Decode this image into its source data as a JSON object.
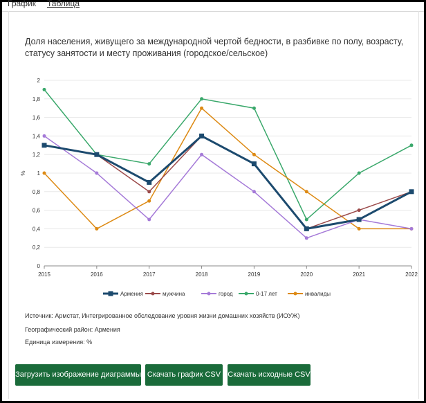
{
  "tabs": {
    "chart": "График",
    "table": "Таблица"
  },
  "title": "Доля населения, живущего за международной чертой бедности, в разбивке по полу, возрасту, статусу занятости и месту проживания (городское/сельское)",
  "chart_data": {
    "type": "line",
    "title": "Доля населения, живущего за международной чертой бедности, в разбивке по полу, возрасту, статусу занятости и месту проживания (городское/сельское)",
    "ylabel": "%",
    "xlabel": "",
    "x": [
      "2015",
      "2016",
      "2017",
      "2018",
      "2019",
      "2020",
      "2021",
      "2022"
    ],
    "ylim": [
      0,
      2
    ],
    "yticks": [
      "0",
      "0,2",
      "0,4",
      "0,6",
      "0,8",
      "1",
      "1,2",
      "1,4",
      "1,6",
      "1,8",
      "2"
    ],
    "grid": true,
    "legend_position": "bottom",
    "series": [
      {
        "name": "0-17 лет",
        "color": "#3aa86b",
        "values": [
          1.9,
          1.2,
          1.1,
          1.8,
          1.7,
          0.5,
          1.0,
          1.3
        ]
      },
      {
        "name": "инвалиды",
        "color": "#dd8a14",
        "values": [
          1.0,
          0.4,
          0.7,
          1.7,
          1.2,
          0.8,
          0.4,
          0.4
        ]
      },
      {
        "name": "город",
        "color": "#a57ad8",
        "values": [
          1.4,
          1.0,
          0.5,
          1.2,
          0.8,
          0.3,
          0.5,
          0.4
        ]
      },
      {
        "name": "мужчина",
        "color": "#9b4a4a",
        "values": [
          1.3,
          1.2,
          0.8,
          1.4,
          1.1,
          0.4,
          0.6,
          0.8
        ]
      },
      {
        "name": "Армения",
        "color": "#1c4a6e",
        "values": [
          1.3,
          1.2,
          0.9,
          1.4,
          1.1,
          0.4,
          0.5,
          0.8
        ]
      }
    ],
    "legend_order": [
      "Армения",
      "мужчина",
      "город",
      "0-17 лет",
      "инвалиды"
    ]
  },
  "info": {
    "source": "Источник: Армстат, Интегрированное обследование уровня жизни домашних хозяйств (ИОУЖ)",
    "region": "Географический район: Армения",
    "unit": "Единица измерения: %"
  },
  "buttons": {
    "download_image": "Загрузить изображение диаграммы",
    "download_chart_csv": "Скачать график CSV",
    "download_source_csv": "Скачать исходные CSV"
  },
  "colors": {
    "button_bg": "#1a6b3a",
    "button_text": "#ffffff"
  }
}
